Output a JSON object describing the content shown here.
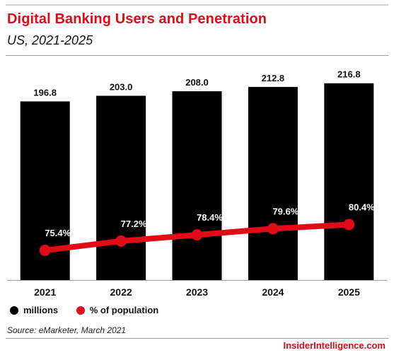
{
  "header": {
    "title": "Digital Banking Users and Penetration",
    "subtitle": "US, 2021-2025"
  },
  "legend": {
    "items": [
      {
        "label": "millions",
        "color": "#000000"
      },
      {
        "label": "% of population",
        "color": "#e20a16"
      }
    ]
  },
  "footer": {
    "source": "Source: eMarketer, March 2021",
    "brand": "InsiderIntelligence.com"
  },
  "chart_data": {
    "type": "bar",
    "title": "Digital Banking Users and Penetration",
    "subtitle": "US, 2021-2025",
    "categories": [
      "2021",
      "2022",
      "2023",
      "2024",
      "2025"
    ],
    "series": [
      {
        "name": "millions",
        "type": "bar",
        "color": "#000000",
        "values": [
          196.8,
          203.0,
          208.0,
          212.8,
          216.8
        ],
        "labels": [
          "196.8",
          "203.0",
          "208.0",
          "212.8",
          "216.8"
        ]
      },
      {
        "name": "% of population",
        "type": "line",
        "color": "#e20a16",
        "values": [
          75.4,
          77.2,
          78.4,
          79.6,
          80.4
        ],
        "labels": [
          "75.4%",
          "77.2%",
          "78.4%",
          "79.6%",
          "80.4%"
        ]
      }
    ],
    "grid": false,
    "legend_position": "bottom-left"
  }
}
